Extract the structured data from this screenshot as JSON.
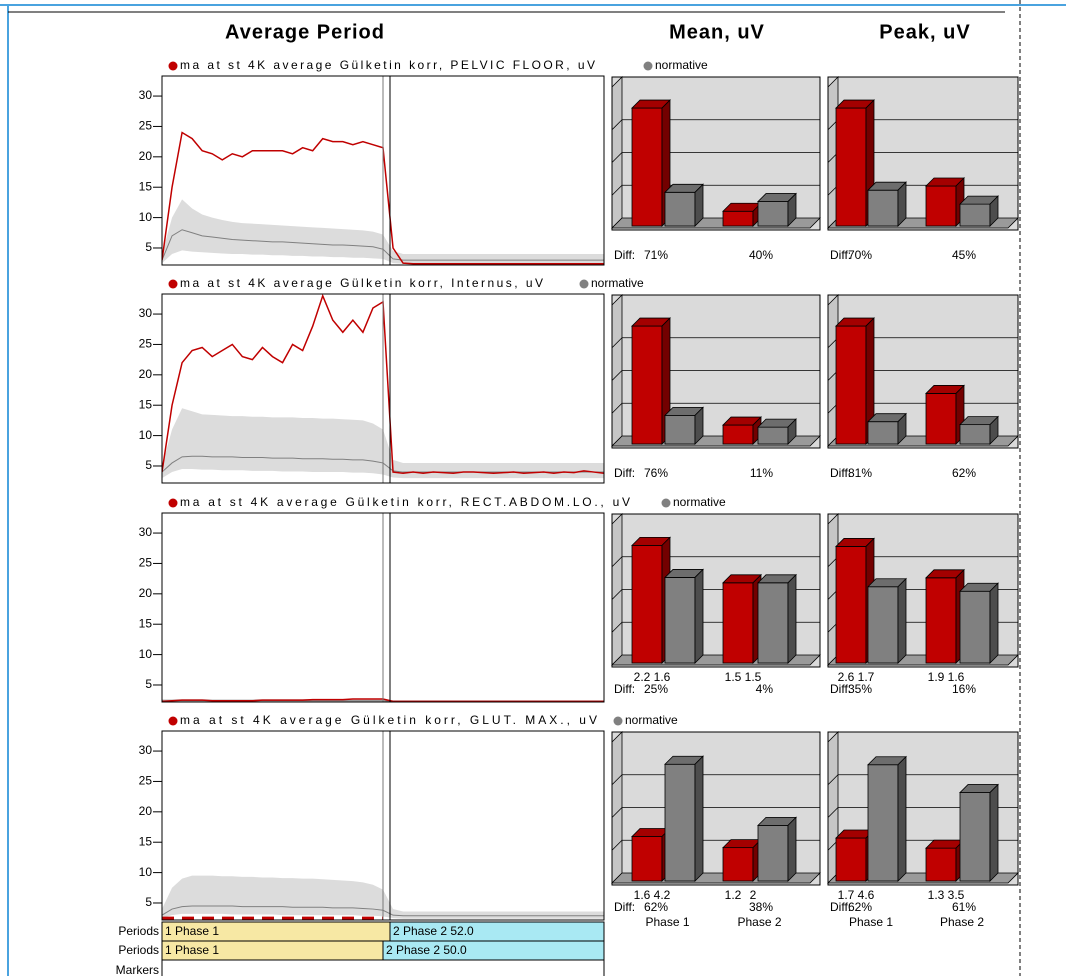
{
  "headers": [
    "Average Period",
    "Mean, uV",
    "Peak, uV"
  ],
  "chart_data": [
    {
      "type": "line",
      "ylim": [
        2.2,
        33.3
      ],
      "yticks": [
        5,
        10,
        15,
        20,
        25,
        30
      ],
      "series": [
        {
          "name": "ma at st 4K average Gülketin korr, PELVIC FLOOR, uV",
          "color": "#c00000",
          "values": [
            3,
            15,
            24,
            23,
            21,
            20.5,
            19.5,
            20.5,
            20,
            21,
            21,
            21,
            21,
            20.5,
            21.5,
            21,
            23,
            22.5,
            22.5,
            22,
            22.5,
            22,
            21.5,
            5,
            2.5,
            2.4,
            2.4,
            2.4,
            2.4,
            2.4,
            2.4,
            2.4,
            2.4,
            2.4,
            2.4,
            2.4,
            2.4,
            2.4,
            2.4,
            2.4,
            2.4,
            2.4,
            2.4,
            2.4,
            2.4
          ]
        },
        {
          "name": "normative",
          "color": "#808080",
          "band_color": "#dcdcdc",
          "values": [
            3,
            7,
            8,
            7.5,
            7,
            6.8,
            6.6,
            6.4,
            6.3,
            6.2,
            6.1,
            6,
            6,
            5.9,
            5.8,
            5.7,
            5.6,
            5.5,
            5.5,
            5.4,
            5.3,
            5.2,
            4.8,
            3.2,
            3,
            3,
            3,
            3,
            3,
            3,
            3,
            3,
            3,
            3,
            3,
            3,
            3,
            3,
            3,
            3,
            3,
            3,
            3,
            3,
            3
          ],
          "band_high": [
            4,
            10,
            13,
            11.5,
            10.5,
            10,
            9.6,
            9.3,
            9.1,
            9,
            8.9,
            8.8,
            8.7,
            8.6,
            8.5,
            8.4,
            8.3,
            8.2,
            8.1,
            8,
            7.9,
            7.7,
            7.2,
            4.5,
            4,
            4,
            4,
            4,
            4,
            4,
            4,
            4,
            4,
            4,
            4,
            4,
            4,
            4,
            4,
            4,
            4,
            4,
            4,
            4,
            4
          ],
          "band_low": [
            2.5,
            4,
            4.6,
            4.4,
            4.3,
            4.2,
            4.1,
            4,
            4,
            3.9,
            3.9,
            3.8,
            3.8,
            3.7,
            3.7,
            3.6,
            3.6,
            3.5,
            3.5,
            3.4,
            3.4,
            3.3,
            3.2,
            2.5,
            2.4,
            2.4,
            2.4,
            2.4,
            2.4,
            2.4,
            2.4,
            2.4,
            2.4,
            2.4,
            2.4,
            2.4,
            2.4,
            2.4,
            2.4,
            2.4,
            2.4,
            2.4,
            2.4,
            2.4,
            2.4
          ]
        }
      ]
    },
    {
      "type": "bar",
      "categories": [
        null,
        null
      ],
      "ylim": [
        0,
        3.3
      ],
      "show_values": false,
      "diff_label": "Diff:",
      "diffs": [
        "71%",
        "40%"
      ],
      "series": [
        {
          "color": "#c00000",
          "values": [
            2.8,
            0.35
          ]
        },
        {
          "color": "#808080",
          "values": [
            0.8,
            0.58
          ]
        }
      ]
    },
    {
      "type": "bar",
      "categories": [
        null,
        null
      ],
      "ylim": [
        0,
        3.3
      ],
      "show_values": false,
      "diff_label": "Diff:",
      "diffs": [
        "70%",
        "45%"
      ],
      "series": [
        {
          "color": "#c00000",
          "values": [
            2.8,
            0.95
          ]
        },
        {
          "color": "#808080",
          "values": [
            0.85,
            0.52
          ]
        }
      ]
    },
    {
      "type": "line",
      "ylim": [
        2.2,
        33.3
      ],
      "yticks": [
        5,
        10,
        15,
        20,
        25,
        30
      ],
      "series": [
        {
          "name": "ma at st 4K average Gülketin korr, Internus, uV",
          "color": "#c00000",
          "values": [
            4,
            15,
            22,
            24,
            24.5,
            23,
            24,
            25,
            23,
            22.5,
            24.5,
            23,
            22,
            25,
            24,
            28,
            33,
            29,
            27,
            29,
            27,
            31,
            32,
            4,
            3.8,
            4,
            3.8,
            4,
            3.9,
            3.8,
            4,
            4,
            3.9,
            3.8,
            3.9,
            4,
            3.8,
            3.9,
            4,
            3.8,
            4,
            3.9,
            4.2,
            4,
            3.8
          ]
        },
        {
          "name": "normative",
          "color": "#808080",
          "band_color": "#dcdcdc",
          "values": [
            4,
            5.5,
            6.5,
            6.6,
            6.6,
            6.5,
            6.5,
            6.5,
            6.4,
            6.4,
            6.4,
            6.3,
            6.3,
            6.3,
            6.2,
            6.2,
            6.2,
            6.1,
            6.1,
            6,
            6,
            5.8,
            5.5,
            4.2,
            4,
            4,
            4,
            4,
            4,
            4,
            4,
            4,
            4,
            4,
            4,
            4,
            4,
            4,
            4,
            4,
            4,
            4,
            4,
            4,
            4
          ],
          "band_high": [
            5,
            11,
            14.5,
            14,
            13.5,
            13.4,
            13.3,
            13.2,
            13.2,
            13.1,
            13.1,
            13,
            13,
            13,
            12.9,
            12.9,
            12.8,
            12.8,
            12.7,
            12.6,
            12.5,
            12,
            11,
            6,
            5.5,
            5.5,
            5.5,
            5.5,
            5.5,
            5.5,
            5.5,
            5.5,
            5.5,
            5.5,
            5.5,
            5.5,
            5.5,
            5.5,
            5.5,
            5.5,
            5.5,
            5.5,
            5.5,
            5.5,
            5.5
          ],
          "band_low": [
            3,
            4,
            4.5,
            4.5,
            4.4,
            4.4,
            4.3,
            4.3,
            4.3,
            4.2,
            4.2,
            4.2,
            4.1,
            4.1,
            4.1,
            4,
            4,
            4,
            4,
            3.9,
            3.9,
            3.8,
            3.6,
            3.1,
            3,
            3,
            3,
            3,
            3,
            3,
            3,
            3,
            3,
            3,
            3,
            3,
            3,
            3,
            3,
            3,
            3,
            3,
            3,
            3,
            3
          ]
        }
      ]
    },
    {
      "type": "bar",
      "categories": [
        null,
        null
      ],
      "ylim": [
        0,
        3.3
      ],
      "show_values": false,
      "diff_label": "Diff:",
      "diffs": [
        "76%",
        "11%"
      ],
      "series": [
        {
          "color": "#c00000",
          "values": [
            2.8,
            0.45
          ]
        },
        {
          "color": "#808080",
          "values": [
            0.68,
            0.4
          ]
        }
      ]
    },
    {
      "type": "bar",
      "categories": [
        null,
        null
      ],
      "ylim": [
        0,
        3.3
      ],
      "show_values": false,
      "diff_label": "Diff:",
      "diffs": [
        "81%",
        "62%"
      ],
      "series": [
        {
          "color": "#c00000",
          "values": [
            2.8,
            1.2
          ]
        },
        {
          "color": "#808080",
          "values": [
            0.53,
            0.46
          ]
        }
      ]
    },
    {
      "type": "line",
      "ylim": [
        2.2,
        33.3
      ],
      "yticks": [
        5,
        10,
        15,
        20,
        25,
        30
      ],
      "series": [
        {
          "name": "ma at st 4K average Gülketin korr, RECT.ABDOM.LO., uV",
          "color": "#c00000",
          "values": [
            2.3,
            2.4,
            2.5,
            2.5,
            2.5,
            2.4,
            2.4,
            2.4,
            2.4,
            2.4,
            2.5,
            2.5,
            2.5,
            2.5,
            2.5,
            2.6,
            2.6,
            2.6,
            2.6,
            2.7,
            2.7,
            2.7,
            2.7,
            2.3,
            2.3,
            2.3,
            2.3,
            2.3,
            2.3,
            2.3,
            2.3,
            2.3,
            2.3,
            2.3,
            2.3,
            2.3,
            2.3,
            2.3,
            2.3,
            2.3,
            2.3,
            2.3,
            2.3,
            2.3,
            2.3
          ]
        },
        {
          "name": "normative",
          "color": "#808080",
          "band_color": "#dcdcdc",
          "values": [
            2.4,
            2.4,
            2.4,
            2.4,
            2.4,
            2.4,
            2.4,
            2.4,
            2.4,
            2.4,
            2.4,
            2.4,
            2.4,
            2.4,
            2.4,
            2.4,
            2.4,
            2.4,
            2.4,
            2.4,
            2.4,
            2.4,
            2.4,
            2.3,
            2.3,
            2.3,
            2.3,
            2.3,
            2.3,
            2.3,
            2.3,
            2.3,
            2.3,
            2.3,
            2.3,
            2.3,
            2.3,
            2.3,
            2.3,
            2.3,
            2.3,
            2.3,
            2.3,
            2.3,
            2.3
          ],
          "band_high": [
            2.7,
            2.7,
            2.7,
            2.7,
            2.7,
            2.7,
            2.7,
            2.7,
            2.7,
            2.7,
            2.7,
            2.7,
            2.7,
            2.7,
            2.7,
            2.7,
            2.7,
            2.7,
            2.7,
            2.7,
            2.7,
            2.7,
            2.7,
            2.5,
            2.5,
            2.5,
            2.5,
            2.5,
            2.5,
            2.5,
            2.5,
            2.5,
            2.5,
            2.5,
            2.5,
            2.5,
            2.5,
            2.5,
            2.5,
            2.5,
            2.5,
            2.5,
            2.5,
            2.5,
            2.5
          ],
          "band_low": [
            2.2,
            2.2,
            2.2,
            2.2,
            2.2,
            2.2,
            2.2,
            2.2,
            2.2,
            2.2,
            2.2,
            2.2,
            2.2,
            2.2,
            2.2,
            2.2,
            2.2,
            2.2,
            2.2,
            2.2,
            2.2,
            2.2,
            2.2,
            2.2,
            2.2,
            2.2,
            2.2,
            2.2,
            2.2,
            2.2,
            2.2,
            2.2,
            2.2,
            2.2,
            2.2,
            2.2,
            2.2,
            2.2,
            2.2,
            2.2,
            2.2,
            2.2,
            2.2,
            2.2,
            2.2
          ]
        }
      ]
    },
    {
      "type": "bar",
      "categories": [
        null,
        null
      ],
      "ylim": [
        0,
        2.6
      ],
      "show_values": true,
      "diff_label": "Diff:",
      "diffs": [
        "25%",
        "4%"
      ],
      "series": [
        {
          "color": "#c00000",
          "values": [
            2.2,
            1.5
          ]
        },
        {
          "color": "#808080",
          "values": [
            1.6,
            1.5
          ]
        }
      ]
    },
    {
      "type": "bar",
      "categories": [
        null,
        null
      ],
      "ylim": [
        0,
        3.1
      ],
      "show_values": true,
      "diff_label": "Diff:",
      "diffs": [
        "35%",
        "16%"
      ],
      "series": [
        {
          "color": "#c00000",
          "values": [
            2.6,
            1.9
          ]
        },
        {
          "color": "#808080",
          "values": [
            1.7,
            1.6
          ]
        }
      ]
    },
    {
      "type": "line",
      "ylim": [
        2.2,
        33.3
      ],
      "yticks": [
        5,
        10,
        15,
        20,
        25,
        30
      ],
      "series": [
        {
          "name": "ma at st 4K average Gülketin korr, GLUT. MAX., uV",
          "color": "#c00000",
          "dashed": true,
          "values": [
            2.5,
            2.5,
            2.5,
            2.5,
            2.5,
            2.5,
            2.5,
            2.5,
            2.5,
            2.5,
            2.5,
            2.5,
            2.5,
            2.5,
            2.5,
            2.5,
            2.5,
            2.5,
            2.5,
            2.5,
            2.5,
            2.5,
            2.5,
            null,
            null,
            null,
            null,
            null,
            null,
            null,
            null,
            null,
            null,
            null,
            null,
            null,
            null,
            null,
            null,
            null,
            null,
            null,
            null,
            null,
            null
          ]
        },
        {
          "name": "normative",
          "color": "#808080",
          "band_color": "#dcdcdc",
          "values": [
            3,
            4,
            4.4,
            4.5,
            4.5,
            4.5,
            4.5,
            4.5,
            4.4,
            4.4,
            4.4,
            4.4,
            4.4,
            4.3,
            4.3,
            4.3,
            4.3,
            4.2,
            4.2,
            4.2,
            4.1,
            4,
            3.8,
            3,
            2.9,
            2.9,
            2.9,
            2.9,
            2.9,
            2.9,
            2.9,
            2.9,
            2.9,
            2.9,
            2.9,
            2.9,
            2.9,
            2.9,
            2.9,
            2.9,
            2.9,
            2.9,
            2.9,
            2.9,
            2.9
          ],
          "band_high": [
            4,
            7.5,
            9,
            9.5,
            9.5,
            9.5,
            9.4,
            9.4,
            9.3,
            9.3,
            9.2,
            9.2,
            9.1,
            9.1,
            9,
            9,
            8.9,
            8.8,
            8.7,
            8.6,
            8.4,
            8,
            7.2,
            4,
            3.6,
            3.6,
            3.6,
            3.6,
            3.6,
            3.6,
            3.6,
            3.6,
            3.6,
            3.6,
            3.6,
            3.6,
            3.6,
            3.6,
            3.6,
            3.6,
            3.6,
            3.6,
            3.6,
            3.6,
            3.6
          ],
          "band_low": [
            2.5,
            3,
            3.2,
            3.2,
            3.2,
            3.2,
            3.2,
            3.1,
            3.1,
            3.1,
            3.1,
            3.1,
            3,
            3,
            3,
            3,
            3,
            3,
            3,
            3,
            2.9,
            2.9,
            2.8,
            2.5,
            2.4,
            2.4,
            2.4,
            2.4,
            2.4,
            2.4,
            2.4,
            2.4,
            2.4,
            2.4,
            2.4,
            2.4,
            2.4,
            2.4,
            2.4,
            2.4,
            2.4,
            2.4,
            2.4,
            2.4,
            2.4
          ]
        }
      ]
    },
    {
      "type": "bar",
      "categories": [
        "Phase 1",
        "Phase 2"
      ],
      "ylim": [
        0,
        5
      ],
      "show_values": true,
      "diff_label": "Diff:",
      "diffs": [
        "62%",
        "38%"
      ],
      "series": [
        {
          "color": "#c00000",
          "values": [
            1.6,
            1.2
          ]
        },
        {
          "color": "#808080",
          "values": [
            4.2,
            2.0
          ]
        }
      ]
    },
    {
      "type": "bar",
      "categories": [
        "Phase 1",
        "Phase 2"
      ],
      "ylim": [
        0,
        5.5
      ],
      "show_values": true,
      "diff_label": "Diff:",
      "diffs": [
        "62%",
        "61%"
      ],
      "series": [
        {
          "color": "#c00000",
          "values": [
            1.7,
            1.3
          ]
        },
        {
          "color": "#808080",
          "values": [
            4.6,
            3.5
          ]
        }
      ]
    }
  ],
  "periods": [
    {
      "label": "Periods",
      "segments": [
        "1 Phase 1",
        "2 Phase 2 52.0"
      ]
    },
    {
      "label": "Periods",
      "segments": [
        "1 Phase 1",
        "2 Phase 2 50.0"
      ]
    }
  ],
  "markers": {
    "label": "Markers"
  }
}
